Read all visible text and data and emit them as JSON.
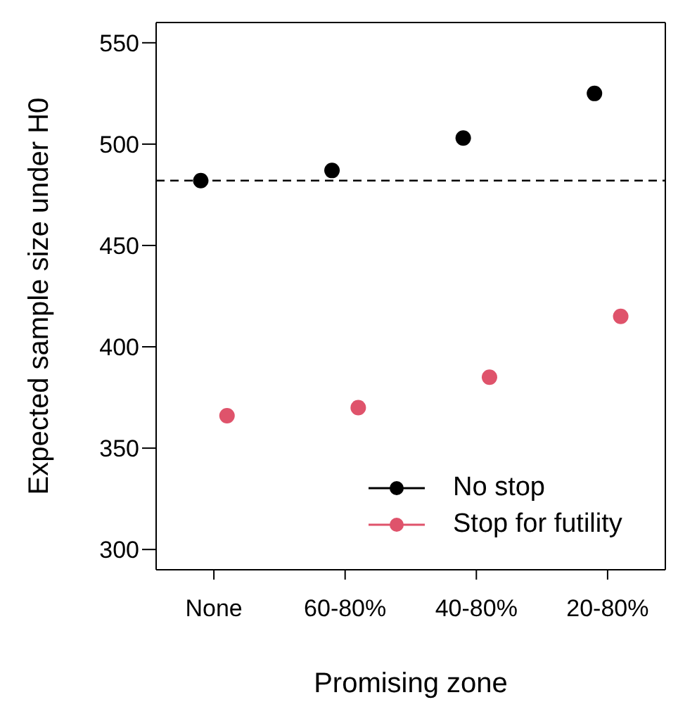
{
  "chart_data": {
    "type": "scatter",
    "xlabel": "Promising zone",
    "ylabel": "Expected sample size under H0",
    "categories": [
      "None",
      "60-80%",
      "40-80%",
      "20-80%"
    ],
    "series": [
      {
        "name": "No stop",
        "color": "#000000",
        "values": [
          482,
          487,
          503,
          525
        ]
      },
      {
        "name": "Stop for futility",
        "color": "#df536b",
        "values": [
          366,
          370,
          385,
          415
        ]
      }
    ],
    "ylim": [
      290,
      560
    ],
    "yticks": [
      300,
      350,
      400,
      450,
      500,
      550
    ],
    "ref_lines": [
      {
        "axis": "y",
        "value": 482,
        "color": "#000000",
        "line_style": "dashed"
      }
    ],
    "legend": "bottom right",
    "marker": "circle"
  }
}
